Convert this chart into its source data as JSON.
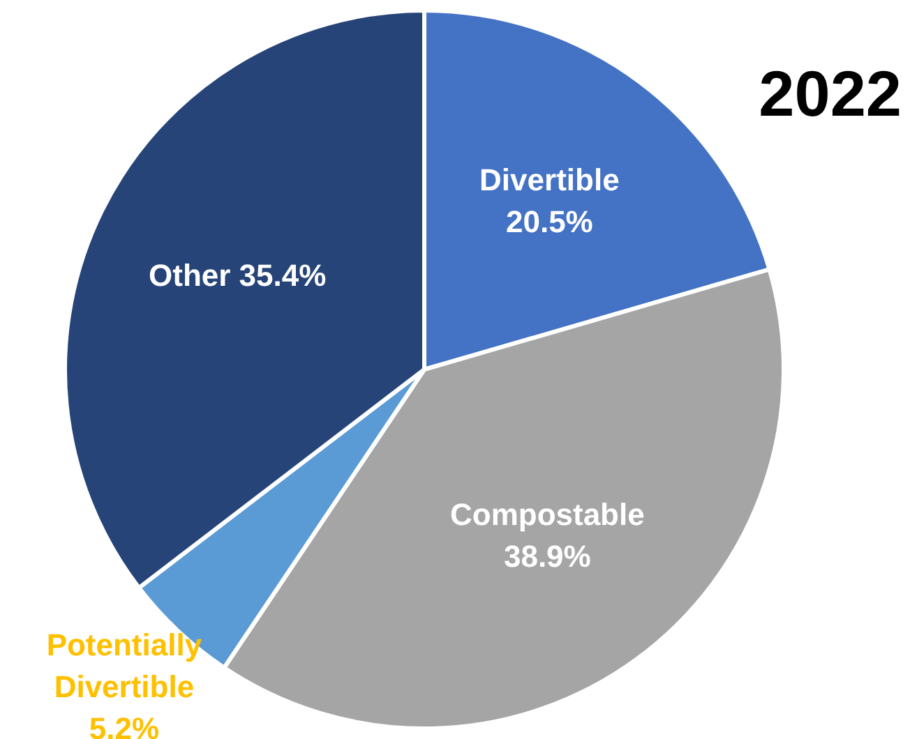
{
  "chart_data": {
    "type": "pie",
    "title": "2022",
    "categories": [
      "Divertible",
      "Compostable",
      "Potentially Divertible",
      "Other"
    ],
    "values": [
      20.5,
      38.9,
      5.2,
      35.4
    ],
    "colors": [
      "#4472c4",
      "#a5a5a5",
      "#5b9bd5",
      "#264478"
    ],
    "value_labels": [
      "20.5%",
      "38.9%",
      "5.2%",
      "35.4%"
    ],
    "legend": false
  }
}
